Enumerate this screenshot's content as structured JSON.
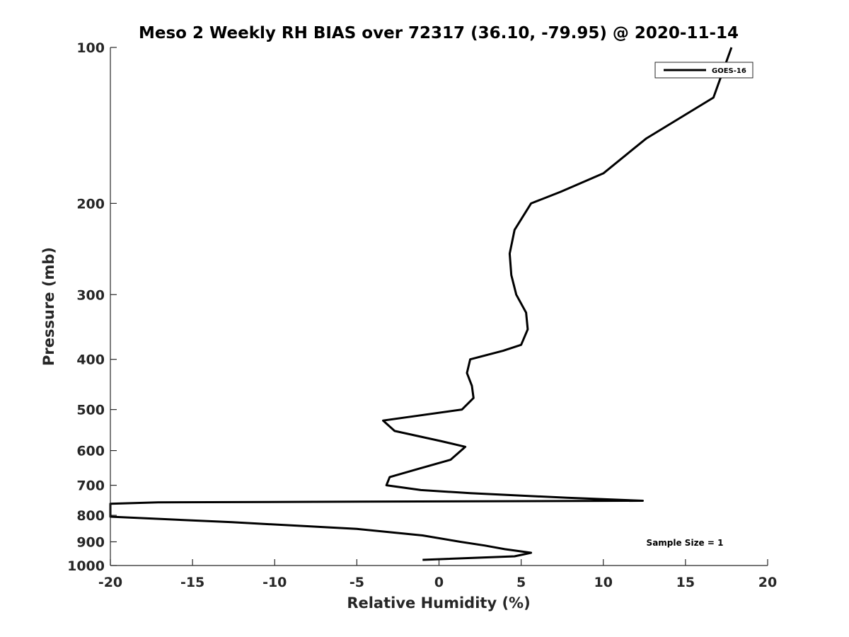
{
  "chart_data": {
    "type": "line",
    "title": "Meso 2 Weekly RH BIAS over 72317 (36.10, -79.95) @ 2020-11-14",
    "xlabel": "Relative Humidity (%)",
    "ylabel": "Pressure (mb)",
    "xlim": [
      -20,
      20
    ],
    "ylim": [
      100,
      1000
    ],
    "y_scale": "log",
    "y_reversed": true,
    "grid": false,
    "x_ticks": [
      -20,
      -15,
      -10,
      -5,
      0,
      5,
      10,
      15,
      20
    ],
    "x_tick_labels": [
      "-20",
      "-15",
      "-10",
      "-5",
      "0",
      "5",
      "10",
      "15",
      "20"
    ],
    "y_ticks": [
      100,
      200,
      300,
      400,
      500,
      600,
      700,
      800,
      900,
      1000
    ],
    "y_tick_labels": [
      "100",
      "200",
      "300",
      "400",
      "500",
      "600",
      "700",
      "800",
      "900",
      "1000"
    ],
    "legend_position": "top-right",
    "annotation": "Sample Size = 1",
    "series": [
      {
        "name": "GOES-16",
        "color": "#000000",
        "points": [
          [
            17.8,
            100
          ],
          [
            16.7,
            125
          ],
          [
            12.6,
            150
          ],
          [
            10.0,
            175
          ],
          [
            7.4,
            190
          ],
          [
            5.6,
            200
          ],
          [
            4.6,
            225
          ],
          [
            4.3,
            250
          ],
          [
            4.4,
            275
          ],
          [
            4.7,
            300
          ],
          [
            5.3,
            325
          ],
          [
            5.4,
            350
          ],
          [
            5.0,
            375
          ],
          [
            3.9,
            385
          ],
          [
            1.9,
            400
          ],
          [
            1.7,
            425
          ],
          [
            2.0,
            450
          ],
          [
            2.1,
            475
          ],
          [
            1.4,
            500
          ],
          [
            -3.4,
            525
          ],
          [
            -2.7,
            550
          ],
          [
            0.1,
            575
          ],
          [
            1.6,
            590
          ],
          [
            0.7,
            625
          ],
          [
            -1.2,
            650
          ],
          [
            -3.0,
            675
          ],
          [
            -3.2,
            700
          ],
          [
            -1.1,
            715
          ],
          [
            1.9,
            725
          ],
          [
            7.8,
            740
          ],
          [
            12.4,
            750
          ],
          [
            -17.1,
            755
          ],
          [
            -20.0,
            760
          ],
          [
            -20.0,
            805
          ],
          [
            -18.1,
            810
          ],
          [
            -12.6,
            825
          ],
          [
            -5.0,
            850
          ],
          [
            -1.0,
            875
          ],
          [
            1.3,
            900
          ],
          [
            2.8,
            915
          ],
          [
            4.0,
            930
          ],
          [
            5.6,
            945
          ],
          [
            4.6,
            960
          ],
          [
            -1.0,
            975
          ]
        ]
      }
    ]
  }
}
